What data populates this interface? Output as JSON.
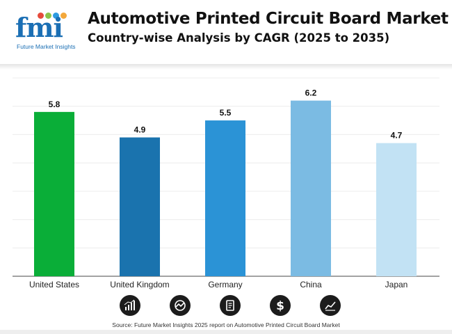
{
  "header": {
    "title": "Automotive Printed Circuit Board Market",
    "subtitle": "Country-wise Analysis by CAGR (2025 to 2035)",
    "logo_word": "fmi",
    "logo_tagline": "Future Market Insights",
    "logo_dot_colors": [
      "#e64b3c",
      "#8bc34a",
      "#2e9be0",
      "#f3a83b"
    ]
  },
  "chart_data": {
    "type": "bar",
    "categories": [
      "United States",
      "United Kingdom",
      "Germany",
      "China",
      "Japan"
    ],
    "values": [
      5.8,
      4.9,
      5.5,
      6.2,
      4.7
    ],
    "data_labels": [
      "5.8",
      "4.9",
      "5.5",
      "6.2",
      "4.7"
    ],
    "colors": [
      "#0aae38",
      "#1a73ae",
      "#2b93d6",
      "#7bbbe3",
      "#c2e2f4"
    ],
    "title": "",
    "xlabel": "",
    "ylabel": "",
    "ylim": [
      0,
      7
    ],
    "grid": true
  },
  "footer": {
    "icons": [
      "bar-chart-icon",
      "target-icon",
      "document-icon",
      "dollar-icon",
      "trend-chart-icon"
    ],
    "source": "Source: Future Market Insights 2025 report on Automotive Printed Circuit Board Market"
  }
}
